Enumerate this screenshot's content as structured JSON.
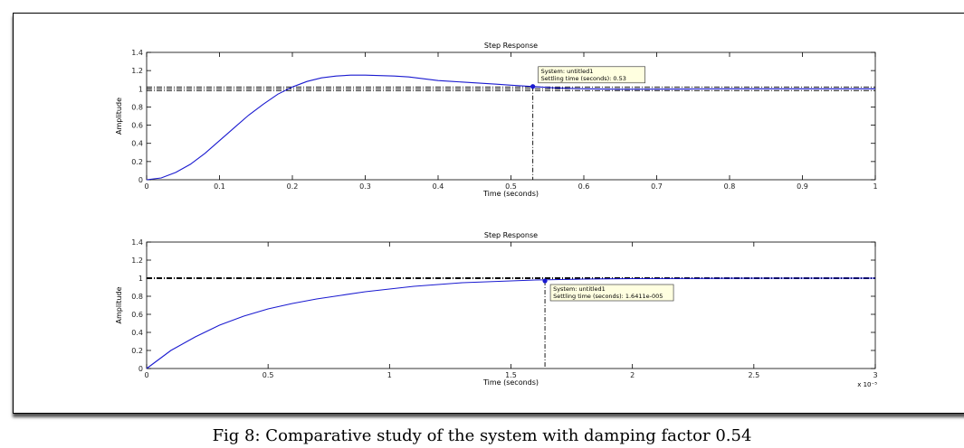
{
  "figure": {
    "caption": "Fig 8: Comparative study of the system with damping factor 0.54"
  },
  "colors": {
    "curve": "#1a1ad0",
    "axis": "#000000",
    "ref_line": "#000000",
    "datatip_bg": "#ffffe0"
  },
  "chart_data": [
    {
      "type": "line",
      "title": "Step Response",
      "xlabel": "Time (seconds)",
      "ylabel": "Amplitude",
      "xlim": [
        0,
        1
      ],
      "ylim": [
        0,
        1.4
      ],
      "xticks": [
        0,
        0.1,
        0.2,
        0.3,
        0.4,
        0.5,
        0.6,
        0.7,
        0.8,
        0.9,
        1
      ],
      "xtick_labels": [
        "0",
        "0.1",
        "0.2",
        "0.3",
        "0.4",
        "0.5",
        "0.6",
        "0.7",
        "0.8",
        "0.9",
        "1"
      ],
      "yticks": [
        0,
        0.2,
        0.4,
        0.6,
        0.8,
        1,
        1.2,
        1.4
      ],
      "ytick_labels": [
        "0",
        "0.2",
        "0.4",
        "0.6",
        "0.8",
        "1",
        "1.2",
        "1.4"
      ],
      "x_exponent": "",
      "reference_lines": [
        0.98,
        1.0,
        1.02
      ],
      "series": [
        {
          "name": "Step response",
          "x": [
            0,
            0.02,
            0.04,
            0.06,
            0.08,
            0.1,
            0.12,
            0.14,
            0.16,
            0.18,
            0.2,
            0.22,
            0.24,
            0.26,
            0.28,
            0.3,
            0.32,
            0.34,
            0.36,
            0.38,
            0.4,
            0.42,
            0.44,
            0.46,
            0.48,
            0.5,
            0.52,
            0.53,
            0.56,
            0.6,
            0.65,
            0.7,
            0.75,
            0.8,
            0.85,
            0.9,
            0.95,
            1.0
          ],
          "y": [
            0,
            0.02,
            0.08,
            0.17,
            0.29,
            0.43,
            0.57,
            0.71,
            0.83,
            0.94,
            1.02,
            1.08,
            1.12,
            1.14,
            1.15,
            1.15,
            1.145,
            1.14,
            1.13,
            1.11,
            1.09,
            1.08,
            1.07,
            1.06,
            1.05,
            1.04,
            1.03,
            1.025,
            1.01,
            1.0,
            0.995,
            0.996,
            0.998,
            1.0,
            1.0,
            1.0,
            1.0,
            1.0
          ]
        }
      ],
      "marker": {
        "x": 0.53,
        "y": 1.025
      },
      "datatip": {
        "line1": "System: untitled1",
        "line2": "Settling time (seconds): 0.53"
      }
    },
    {
      "type": "line",
      "title": "Step Response",
      "xlabel": "Time (seconds)",
      "ylabel": "Amplitude",
      "xlim": [
        0,
        3
      ],
      "ylim": [
        0,
        1.4
      ],
      "xticks": [
        0,
        0.5,
        1,
        1.5,
        2,
        2.5,
        3
      ],
      "xtick_labels": [
        "0",
        "0.5",
        "1",
        "1.5",
        "2",
        "2.5",
        "3"
      ],
      "yticks": [
        0,
        0.2,
        0.4,
        0.6,
        0.8,
        1,
        1.2,
        1.4
      ],
      "ytick_labels": [
        "0",
        "0.2",
        "0.4",
        "0.6",
        "0.8",
        "1",
        "1.2",
        "1.4"
      ],
      "x_exponent": "x 10⁻⁵",
      "reference_lines": [
        0.995,
        1.0,
        1.005
      ],
      "series": [
        {
          "name": "Step response",
          "x": [
            0,
            0.1,
            0.2,
            0.3,
            0.4,
            0.5,
            0.6,
            0.7,
            0.8,
            0.9,
            1.0,
            1.1,
            1.2,
            1.3,
            1.4,
            1.5,
            1.6,
            1.7,
            1.8,
            1.9,
            2.0,
            2.2,
            2.4,
            2.6,
            2.8,
            3.0
          ],
          "y": [
            0,
            0.2,
            0.35,
            0.48,
            0.58,
            0.66,
            0.72,
            0.77,
            0.81,
            0.85,
            0.88,
            0.91,
            0.93,
            0.95,
            0.96,
            0.97,
            0.98,
            0.985,
            0.99,
            0.993,
            0.995,
            0.997,
            0.999,
            1.0,
            1.0,
            1.0
          ]
        }
      ],
      "marker": {
        "x": 1.64,
        "y": 0.97
      },
      "datatip": {
        "line1": "System: untitled1",
        "line2": "Settling time (seconds): 1.6411e-005"
      }
    }
  ]
}
